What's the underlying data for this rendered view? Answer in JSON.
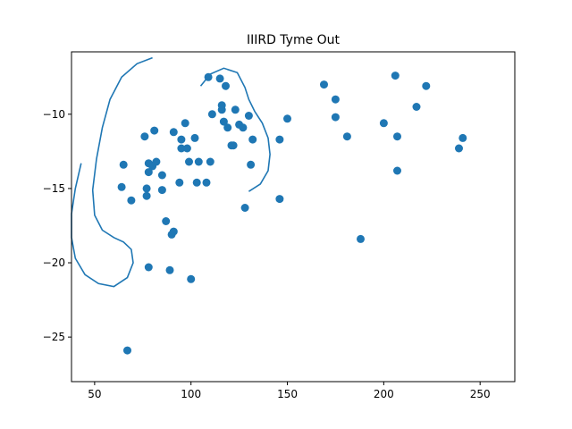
{
  "chart_data": {
    "type": "scatter",
    "title": "IIIRD Tyme Out",
    "xlabel": "",
    "ylabel": "",
    "xlim": [
      38,
      268
    ],
    "ylim": [
      -28.0,
      -5.8
    ],
    "xticks": [
      50,
      100,
      150,
      200,
      250
    ],
    "yticks": [
      -25,
      -20,
      -15,
      -10
    ],
    "ytick_labels": [
      "−25",
      "−20",
      "−15",
      "−10"
    ],
    "grid": false,
    "legend": "none",
    "point_color": "#1f77b4",
    "contour_color": "#1f77b4",
    "points": [
      [
        65,
        -13.4
      ],
      [
        64,
        -14.9
      ],
      [
        69,
        -15.8
      ],
      [
        67,
        -25.9
      ],
      [
        76,
        -11.5
      ],
      [
        77,
        -15.0
      ],
      [
        77,
        -15.5
      ],
      [
        78,
        -13.3
      ],
      [
        78,
        -13.9
      ],
      [
        78,
        -20.3
      ],
      [
        80,
        -13.5
      ],
      [
        81,
        -11.1
      ],
      [
        82,
        -13.2
      ],
      [
        85,
        -14.1
      ],
      [
        85,
        -15.1
      ],
      [
        87,
        -17.2
      ],
      [
        89,
        -20.5
      ],
      [
        90,
        -18.1
      ],
      [
        91,
        -11.2
      ],
      [
        91,
        -17.9
      ],
      [
        94,
        -14.6
      ],
      [
        95,
        -11.7
      ],
      [
        95,
        -12.3
      ],
      [
        97,
        -10.6
      ],
      [
        98,
        -12.3
      ],
      [
        99,
        -13.2
      ],
      [
        100,
        -21.1
      ],
      [
        102,
        -11.6
      ],
      [
        103,
        -14.6
      ],
      [
        104,
        -13.2
      ],
      [
        108,
        -14.6
      ],
      [
        109,
        -7.5
      ],
      [
        110,
        -13.2
      ],
      [
        111,
        -10.0
      ],
      [
        115,
        -7.6
      ],
      [
        116,
        -9.4
      ],
      [
        116,
        -9.7
      ],
      [
        117,
        -10.5
      ],
      [
        118,
        -8.1
      ],
      [
        119,
        -10.9
      ],
      [
        121,
        -12.1
      ],
      [
        122,
        -12.1
      ],
      [
        123,
        -9.7
      ],
      [
        125,
        -10.7
      ],
      [
        127,
        -10.9
      ],
      [
        128,
        -16.3
      ],
      [
        130,
        -10.1
      ],
      [
        131,
        -13.4
      ],
      [
        132,
        -11.7
      ],
      [
        146,
        -11.7
      ],
      [
        146,
        -15.7
      ],
      [
        150,
        -10.3
      ],
      [
        169,
        -8.0
      ],
      [
        175,
        -9.0
      ],
      [
        175,
        -10.2
      ],
      [
        181,
        -11.5
      ],
      [
        188,
        -18.4
      ],
      [
        200,
        -10.6
      ],
      [
        206,
        -7.4
      ],
      [
        207,
        -11.5
      ],
      [
        207,
        -13.8
      ],
      [
        217,
        -9.5
      ],
      [
        222,
        -8.1
      ],
      [
        239,
        -12.3
      ],
      [
        241,
        -11.6
      ]
    ],
    "contours": [
      [
        [
          80,
          -6.2
        ],
        [
          72,
          -6.6
        ],
        [
          64,
          -7.5
        ],
        [
          58,
          -9.0
        ],
        [
          54,
          -10.9
        ],
        [
          51,
          -13.0
        ],
        [
          49,
          -15.1
        ],
        [
          50,
          -16.8
        ],
        [
          54,
          -17.8
        ],
        [
          60,
          -18.3
        ],
        [
          65,
          -18.6
        ],
        [
          69,
          -19.1
        ],
        [
          70,
          -20.0
        ],
        [
          67,
          -21.0
        ],
        [
          60,
          -21.6
        ],
        [
          52,
          -21.4
        ],
        [
          45,
          -20.8
        ],
        [
          40,
          -19.7
        ],
        [
          38,
          -18.3
        ],
        [
          38,
          -16.7
        ],
        [
          40,
          -15.0
        ],
        [
          43,
          -13.3
        ]
      ],
      [
        [
          105,
          -8.1
        ],
        [
          110,
          -7.3
        ],
        [
          117,
          -6.9
        ],
        [
          124,
          -7.2
        ],
        [
          128,
          -8.2
        ],
        [
          130,
          -9.0
        ],
        [
          133,
          -9.8
        ],
        [
          137,
          -10.6
        ],
        [
          140,
          -11.6
        ],
        [
          141,
          -12.7
        ],
        [
          140,
          -13.8
        ],
        [
          136,
          -14.7
        ],
        [
          130,
          -15.2
        ]
      ]
    ]
  }
}
